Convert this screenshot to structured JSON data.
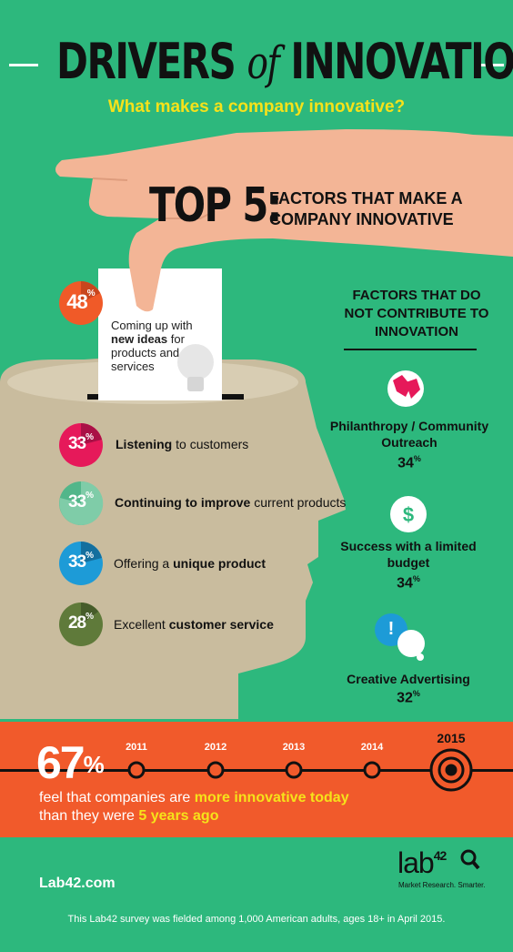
{
  "header": {
    "title_part1": "DRIVERS",
    "title_of": "of",
    "title_part2": "INNOVATION",
    "subtitle": "What makes a company innovative?"
  },
  "top5": {
    "heading": "TOP 5:",
    "subheading": "FACTORS THAT MAKE A COMPANY INNOVATIVE",
    "card": {
      "percent": "48",
      "text_1": "Coming up with ",
      "text_bold": "new ideas",
      "text_2": " for products and services"
    },
    "items": [
      {
        "percent": "33",
        "bold": "Listening",
        "rest": " to customers",
        "color": "#e6195a"
      },
      {
        "percent": "33",
        "bold": "Continuing to improve",
        "rest": " current products",
        "color": "#52b68a"
      },
      {
        "percent": "33",
        "pre": "Offering a ",
        "bold": "unique product",
        "color": "#1d9bd7"
      },
      {
        "percent": "28",
        "pre": "Excellent ",
        "bold": "customer service",
        "color": "#5f7a3a"
      }
    ],
    "percent_symbol": "%"
  },
  "not_contribute": {
    "heading": "FACTORS THAT DO NOT CONTRIBUTE TO INNOVATION",
    "items": [
      {
        "label": "Philanthropy / Community Outreach",
        "percent": "34",
        "icon": "hands-icon"
      },
      {
        "label": "Success with a limited budget",
        "percent": "34",
        "icon": "dollar-icon"
      },
      {
        "label": "Creative Advertising",
        "percent": "32",
        "icon": "thought-bubble-icon"
      }
    ]
  },
  "timeline": {
    "percent": "67",
    "years": [
      "2011",
      "2012",
      "2013",
      "2014",
      "2015"
    ],
    "text_1": "feel that companies are ",
    "text_bold_1": "more innovative today",
    "text_2": "than they were ",
    "text_bold_2": "5 years ago"
  },
  "footer": {
    "site": "Lab42.com",
    "logo": "lab",
    "logo_num": "42",
    "tagline": "Market Research. Smarter.",
    "note": "This Lab42 survey was fielded among 1,000 American adults, ages 18+ in April 2015."
  },
  "colors": {
    "background": "#2db87d",
    "head": "#c9bc9e",
    "hand": "#f3b596",
    "band": "#f15a2b",
    "accent_yellow": "#f6e21a",
    "card_orange": "#f05a28"
  }
}
